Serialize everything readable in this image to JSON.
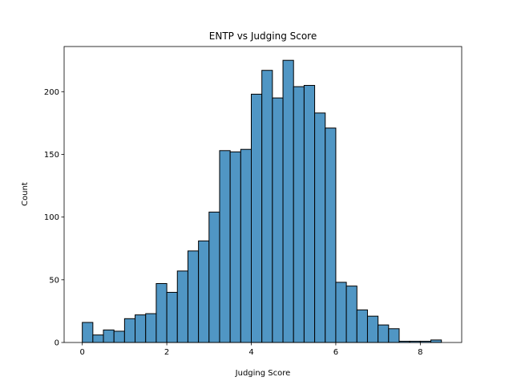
{
  "chart_data": {
    "type": "bar",
    "title": "ENTP vs Judging Score",
    "xlabel": "Judging Score",
    "ylabel": "Count",
    "xlim": [
      -0.43,
      8.98
    ],
    "ylim": [
      0,
      236
    ],
    "xticks": [
      0,
      2,
      4,
      6,
      8
    ],
    "yticks": [
      0,
      50,
      100,
      150,
      200
    ],
    "bin_start": 0.0,
    "bin_width": 0.25,
    "values": [
      16,
      6,
      10,
      9,
      19,
      22,
      23,
      47,
      40,
      57,
      73,
      81,
      104,
      153,
      152,
      154,
      198,
      217,
      195,
      225,
      204,
      205,
      183,
      171,
      48,
      45,
      26,
      21,
      14,
      11,
      1,
      1,
      1,
      2
    ],
    "bar_color": "#5096c4",
    "edge_color": "#000000",
    "grid": false,
    "legend": "none"
  }
}
